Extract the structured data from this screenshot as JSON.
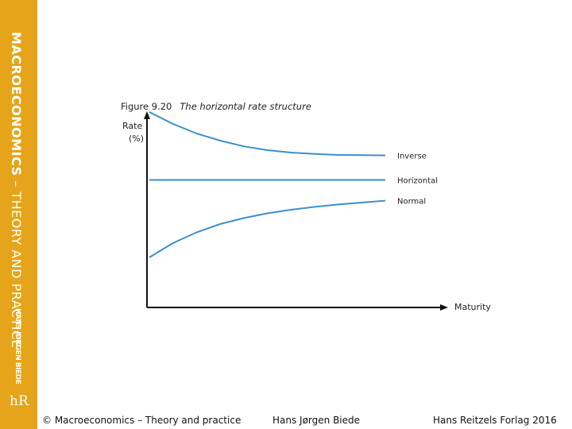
{
  "sidebar": {
    "title_bold": "MACROECONOMICS",
    "title_rest": " – THEORY AND PRACTICE",
    "author": "HANS JØRGEN BIEDE",
    "logo_text": "hR",
    "color": "#e5a41a"
  },
  "figure": {
    "number": "Figure 9.20",
    "title": "The horizontal rate structure"
  },
  "chart_data": {
    "type": "line",
    "ylabel_line1": "Rate",
    "ylabel_line2": "(%)",
    "xlabel": "Maturity",
    "grid": false,
    "line_color": "#3b8fcb",
    "series": [
      {
        "name": "Inverse",
        "x": [
          0,
          0.1,
          0.2,
          0.3,
          0.4,
          0.5,
          0.6,
          0.7,
          0.8,
          0.9,
          1.0
        ],
        "y": [
          0.82,
          0.77,
          0.73,
          0.7,
          0.676,
          0.66,
          0.65,
          0.644,
          0.64,
          0.639,
          0.638
        ]
      },
      {
        "name": "Horizontal",
        "x": [
          0,
          1.0
        ],
        "y": [
          0.535,
          0.535
        ]
      },
      {
        "name": "Normal",
        "x": [
          0,
          0.1,
          0.2,
          0.3,
          0.4,
          0.5,
          0.6,
          0.7,
          0.8,
          0.9,
          1.0
        ],
        "y": [
          0.21,
          0.27,
          0.315,
          0.35,
          0.375,
          0.395,
          0.41,
          0.422,
          0.432,
          0.44,
          0.448
        ]
      }
    ]
  },
  "footer": {
    "copyright": "© Macroeconomics – Theory and practice",
    "author": "Hans Jørgen Biede",
    "publisher": "Hans Reitzels Forlag 2016"
  }
}
